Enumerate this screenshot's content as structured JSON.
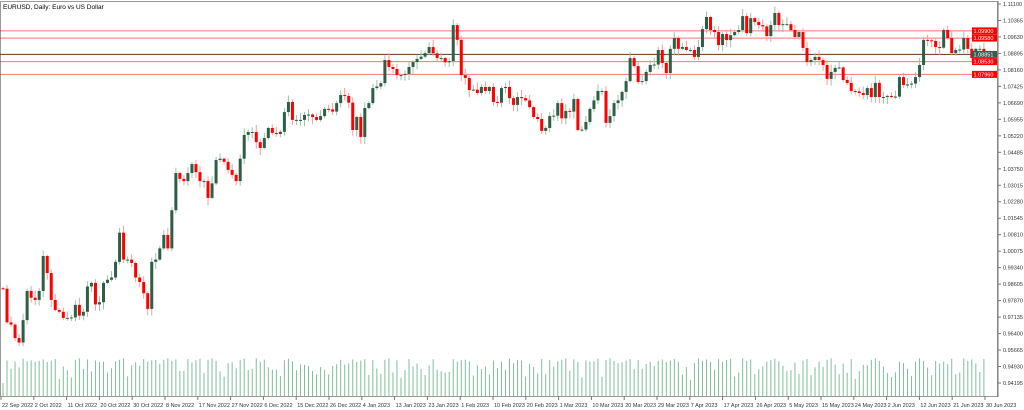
{
  "chart_data": {
    "type": "candlestick",
    "title": "EURUSD, Daily:  Euro vs US Dollar",
    "symbol": "EURUSD",
    "timeframe": "Daily",
    "ylim": [
      0.94195,
      1.111
    ],
    "y_tick_labels": [
      "1.11100",
      "1.10365",
      "1.09630",
      "1.08895",
      "1.08160",
      "1.07425",
      "1.06690",
      "1.05955",
      "1.05220",
      "1.04485",
      "1.03750",
      "1.03015",
      "1.02280",
      "1.01545",
      "1.00810",
      "1.00075",
      "0.99340",
      "0.98605",
      "0.97870",
      "0.97135",
      "0.96400",
      "0.95665",
      "0.94930",
      "0.94195"
    ],
    "x_tick_labels": [
      "22 Sep 2022",
      "2 Oct 2022",
      "11 Oct 2022",
      "20 Oct 2022",
      "30 Oct 2022",
      "8 Nov 2022",
      "17 Nov 2022",
      "27 Nov 2022",
      "6 Dec 2022",
      "15 Dec 2022",
      "26 Dec 2022",
      "4 Jan 2023",
      "13 Jan 2023",
      "23 Jan 2023",
      "1 Feb 2023",
      "10 Feb 2023",
      "20 Feb 2023",
      "1 Mar 2023",
      "10 Mar 2023",
      "20 Mar 2023",
      "29 Mar 2023",
      "7 Apr 2023",
      "17 Apr 2023",
      "26 Apr 2023",
      "5 May 2023",
      "15 May 2023",
      "24 May 2023",
      "2 Jun 2023",
      "12 Jun 2023",
      "21 Jun 2023",
      "30 Jun 2023"
    ],
    "first_open": 0.9842,
    "closes": [
      0.984,
      0.969,
      0.968,
      0.962,
      0.96,
      0.97,
      0.983,
      0.98,
      0.979,
      0.983,
      0.9986,
      0.991,
      0.979,
      0.9745,
      0.9737,
      0.971,
      0.971,
      0.9712,
      0.9768,
      0.972,
      0.9737,
      0.985,
      0.9866,
      0.977,
      0.978,
      0.9866,
      0.988,
      0.989,
      0.996,
      1.009,
      0.997,
      0.997,
      0.9955,
      0.989,
      0.987,
      0.982,
      0.975,
      0.996,
      0.997,
      1.002,
      1.008,
      1.002,
      1.019,
      1.0356,
      1.033,
      1.032,
      1.0356,
      1.0396,
      1.036,
      1.032,
      1.032,
      1.0245,
      1.031,
      1.0414,
      1.042,
      1.0406,
      1.037,
      1.0348,
      1.032,
      1.042,
      1.0526,
      1.0539,
      1.0539,
      1.0494,
      1.0468,
      1.0512,
      1.0557,
      1.0535,
      1.053,
      1.054,
      1.0628,
      1.0673,
      1.0593,
      1.0593,
      1.0593,
      1.0615,
      1.0617,
      1.0606,
      1.0593,
      1.061,
      1.0642,
      1.064,
      1.063,
      1.0668,
      1.0704,
      1.07,
      1.067,
      1.0548,
      1.0606,
      1.0517,
      1.0646,
      1.0668,
      1.0735,
      1.0742,
      1.0757,
      1.086,
      1.0829,
      1.082,
      1.0793,
      1.0793,
      1.0798,
      1.0829,
      1.0851,
      1.0865,
      1.0875,
      1.0891,
      1.0918,
      1.089,
      1.0869,
      1.0869,
      1.085,
      1.0855,
      1.1016,
      1.095,
      1.0793,
      1.078,
      1.0726,
      1.0728,
      1.0713,
      1.074,
      1.0722,
      1.074,
      1.0673,
      1.067,
      1.0735,
      1.074,
      1.069,
      1.066,
      1.0695,
      1.069,
      1.068,
      1.065,
      1.0606,
      1.0597,
      1.0544,
      1.0557,
      1.061,
      1.0612,
      1.0668,
      1.06,
      1.0633,
      1.063,
      1.0686,
      1.0548,
      1.055,
      1.0584,
      1.0642,
      1.068,
      1.0722,
      1.0722,
      1.058,
      1.061,
      1.0668,
      1.068,
      1.0718,
      1.0766,
      1.0869,
      1.0833,
      1.0762,
      1.0766,
      1.0807,
      1.0838,
      1.084,
      1.0905,
      1.0847,
      1.0802,
      1.091,
      1.0958,
      1.091,
      1.0918,
      1.0905,
      1.0905,
      1.0874,
      1.0918,
      1.0998,
      1.1052,
      1.0994,
      1.0985,
      1.0927,
      1.0976,
      1.0949,
      1.0971,
      1.0985,
      1.0994,
      1.1056,
      1.098,
      1.1047,
      1.103,
      1.1016,
      1.101,
      1.0967,
      1.1016,
      1.107,
      1.1016,
      1.102,
      1.102,
      1.0994,
      1.0963,
      1.0985,
      1.0914,
      1.0851,
      1.086,
      1.0874,
      1.086,
      1.0838,
      1.0776,
      1.0807,
      1.0825,
      1.0827,
      1.0771,
      1.0758,
      1.0722,
      1.072,
      1.0713,
      1.0704,
      1.0735,
      1.0695,
      1.0758,
      1.0695,
      1.0695,
      1.07,
      1.0695,
      1.0697,
      1.0784,
      1.0749,
      1.0751,
      1.0755,
      1.0784,
      1.0838,
      1.095,
      1.0948,
      1.0945,
      1.0918,
      1.0915,
      1.0994,
      1.0958,
      1.0891,
      1.0905,
      1.0907,
      1.0958,
      1.091,
      1.0869,
      1.091,
      1.091,
      1.08851
    ],
    "levels": [
      {
        "value": 1.099,
        "label": "1.09900",
        "color": "#ff0000"
      },
      {
        "value": 1.0958,
        "label": "1.09580",
        "color": "#ff0000"
      },
      {
        "value": 1.08851,
        "label": "1.08851",
        "color": "#6b3a1e",
        "current": true
      },
      {
        "value": 1.0853,
        "label": "1.08530",
        "color": "#ff0000"
      },
      {
        "value": 1.0796,
        "label": "1.07960",
        "color": "#ff0000"
      }
    ],
    "colors": {
      "bull": "#2e5e45",
      "bear": "#ff0000",
      "bull_wick": "#9cc4ad",
      "bear_wick": "#ff9a9a",
      "volume": "#7fbf9c"
    },
    "grid": false,
    "volume_shown": true
  }
}
